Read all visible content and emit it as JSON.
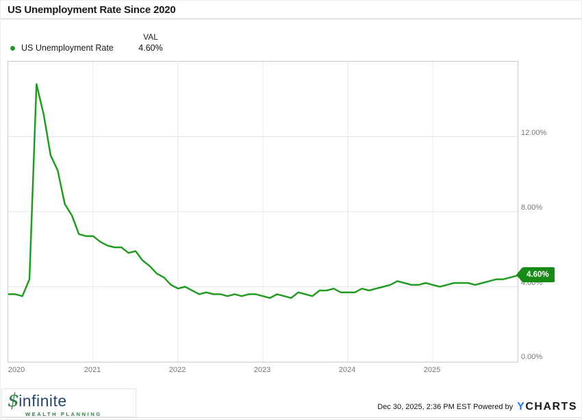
{
  "header": {
    "title": "US Unemployment Rate Since 2020"
  },
  "legend": {
    "series_label": "US Unemployment Rate",
    "val_header": "VAL",
    "val_value": "4.60%"
  },
  "badge": {
    "label": "4.60%"
  },
  "colors": {
    "line_green": "#209b20",
    "badge_green": "#188a18",
    "grid_gray": "#e4e4e4",
    "axis_text_gray": "#757575",
    "ycharts_blue": "#1f7bf4",
    "logo_navy": "#24476b",
    "logo_green": "#2e7d44"
  },
  "chart_data": {
    "type": "line",
    "title": "US Unemployment Rate Since 2020",
    "series_name": "US Unemployment Rate",
    "unit": "%",
    "grid": true,
    "legend_position": "top-left",
    "ylim": [
      0,
      16
    ],
    "y_tick_values": [
      12,
      8,
      4,
      0
    ],
    "y_tick_labels": [
      "12.00%",
      "8.00%",
      "4.00%",
      "0.00%"
    ],
    "x_tick_labels": [
      "2020",
      "2021",
      "2022",
      "2023",
      "2024",
      "2025"
    ],
    "last_point_label": "4.60%",
    "x_months": [
      "2019-12",
      "2020-01",
      "2020-02",
      "2020-03",
      "2020-04",
      "2020-05",
      "2020-06",
      "2020-07",
      "2020-08",
      "2020-09",
      "2020-10",
      "2020-11",
      "2020-12",
      "2021-01",
      "2021-02",
      "2021-03",
      "2021-04",
      "2021-05",
      "2021-06",
      "2021-07",
      "2021-08",
      "2021-09",
      "2021-10",
      "2021-11",
      "2021-12",
      "2022-01",
      "2022-02",
      "2022-03",
      "2022-04",
      "2022-05",
      "2022-06",
      "2022-07",
      "2022-08",
      "2022-09",
      "2022-10",
      "2022-11",
      "2022-12",
      "2023-01",
      "2023-02",
      "2023-03",
      "2023-04",
      "2023-05",
      "2023-06",
      "2023-07",
      "2023-08",
      "2023-09",
      "2023-10",
      "2023-11",
      "2023-12",
      "2024-01",
      "2024-02",
      "2024-03",
      "2024-04",
      "2024-05",
      "2024-06",
      "2024-07",
      "2024-08",
      "2024-09",
      "2024-10",
      "2024-11",
      "2024-12",
      "2025-01",
      "2025-02",
      "2025-03",
      "2025-04",
      "2025-05",
      "2025-06",
      "2025-07",
      "2025-08",
      "2025-09",
      "2025-10",
      "2025-11",
      "2025-12"
    ],
    "values": [
      3.6,
      3.6,
      3.5,
      4.4,
      14.8,
      13.2,
      11.0,
      10.2,
      8.4,
      7.8,
      6.8,
      6.7,
      6.7,
      6.4,
      6.2,
      6.1,
      6.1,
      5.8,
      5.9,
      5.4,
      5.1,
      4.7,
      4.5,
      4.1,
      3.9,
      4.0,
      3.8,
      3.6,
      3.7,
      3.6,
      3.6,
      3.5,
      3.6,
      3.5,
      3.6,
      3.6,
      3.5,
      3.4,
      3.6,
      3.5,
      3.4,
      3.7,
      3.6,
      3.5,
      3.8,
      3.8,
      3.9,
      3.7,
      3.7,
      3.7,
      3.9,
      3.8,
      3.9,
      4.0,
      4.1,
      4.3,
      4.2,
      4.1,
      4.1,
      4.2,
      4.1,
      4.0,
      4.1,
      4.2,
      4.2,
      4.2,
      4.1,
      4.2,
      4.3,
      4.4,
      4.4,
      4.5,
      4.6
    ]
  },
  "footer": {
    "timestamp": "Dec 30, 2025, 2:36 PM EST",
    "powered_by": "Powered by",
    "brand_y": "Y",
    "brand_rest": "CHARTS",
    "logo_symbol": "$",
    "logo_name": "infinite",
    "logo_tagline": "WEALTH PLANNING"
  }
}
